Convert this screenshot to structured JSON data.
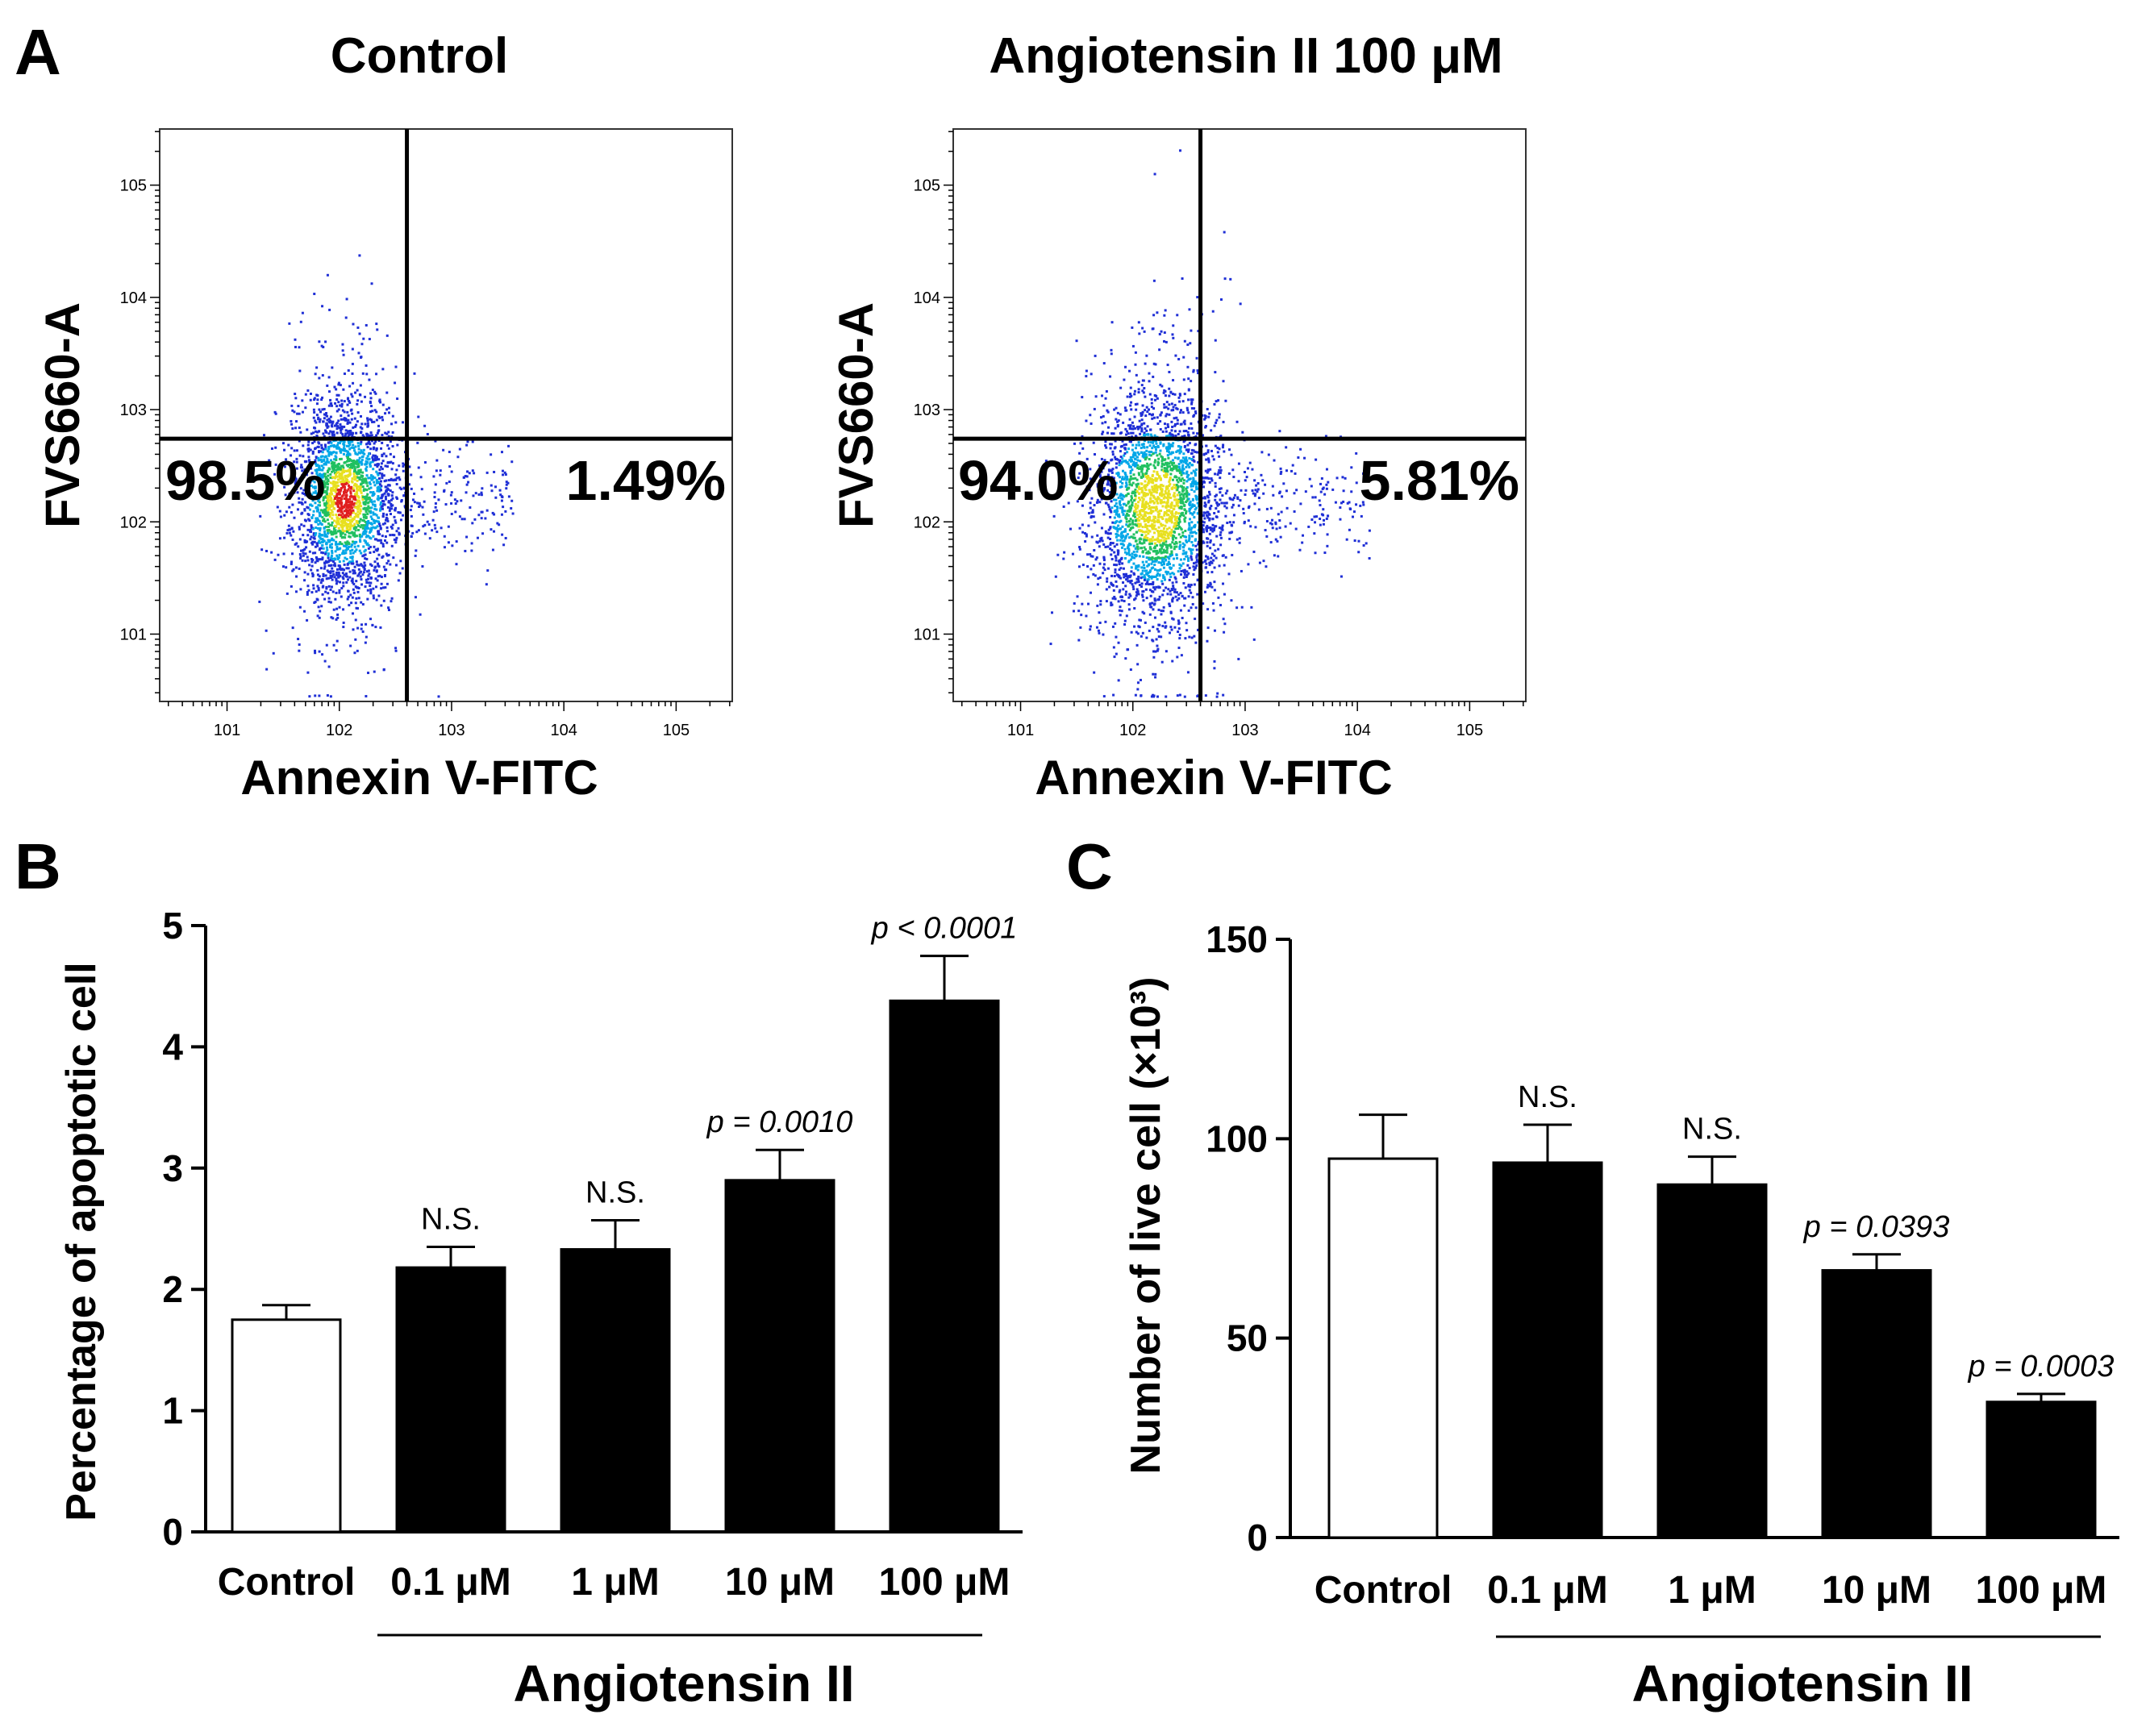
{
  "panel_labels": {
    "a": "A",
    "b": "B",
    "c": "C"
  },
  "chart_data": [
    {
      "type": "scatter",
      "panel": "A",
      "title": "Control",
      "xlabel": "Annexin V-FITC",
      "ylabel": "FVS660-A",
      "scale": "log",
      "x_ticks": [
        "10^1",
        "10^2",
        "10^3",
        "10^4",
        "10^5"
      ],
      "y_ticks": [
        "10^1",
        "10^2",
        "10^3",
        "10^4",
        "10^5"
      ],
      "quadrant_gate": {
        "x": 400,
        "y": 550
      },
      "quadrants": {
        "lower_left": "98.5%",
        "lower_right": "1.49%"
      },
      "population": {
        "center_x": 110,
        "center_y": 160,
        "spread_log_x": 0.24,
        "spread_log_y": 0.42,
        "count": 2600,
        "seed": 7
      },
      "colors": {
        "low": "#1f2fd6",
        "mid1": "#00a7e8",
        "mid2": "#20c060",
        "high": "#e8e020",
        "peak": "#e02020"
      }
    },
    {
      "type": "scatter",
      "panel": "A",
      "title": "Angiotensin II 100 μM",
      "xlabel": "Annexin V-FITC",
      "ylabel": "FVS660-A",
      "scale": "log",
      "x_ticks": [
        "10^1",
        "10^2",
        "10^3",
        "10^4",
        "10^5"
      ],
      "y_ticks": [
        "10^1",
        "10^2",
        "10^3",
        "10^4",
        "10^5"
      ],
      "quadrant_gate": {
        "x": 400,
        "y": 550
      },
      "quadrants": {
        "lower_left": "94.0%",
        "lower_right": "5.81%"
      },
      "population": {
        "center_x": 160,
        "center_y": 140,
        "spread_log_x": 0.3,
        "spread_log_y": 0.5,
        "count": 2900,
        "seed": 19
      },
      "colors": {
        "low": "#1f2fd6",
        "mid1": "#00a7e8",
        "mid2": "#20c060",
        "high": "#e8e020",
        "peak": "#e02020"
      }
    },
    {
      "type": "bar",
      "panel": "B",
      "ylabel": "Percentage of apoptotic cell",
      "categories": [
        "Control",
        "0.1 μM",
        "1 μM",
        "10 μM",
        "100 μM"
      ],
      "values": [
        1.75,
        2.18,
        2.33,
        2.9,
        4.38
      ],
      "errors": [
        0.12,
        0.17,
        0.24,
        0.25,
        0.37
      ],
      "annotations": [
        "",
        "N.S.",
        "N.S.",
        "p = 0.0010",
        "p < 0.0001"
      ],
      "ylim": [
        0,
        5
      ],
      "yticks": [
        0,
        1,
        2,
        3,
        4,
        5
      ],
      "group_label": "Angiotensin II",
      "bar_fill": [
        "#ffffff",
        "#000000",
        "#000000",
        "#000000",
        "#000000"
      ]
    },
    {
      "type": "bar",
      "panel": "C",
      "ylabel": "Number of live cell (×10³)",
      "categories": [
        "Control",
        "0.1 μM",
        "1 μM",
        "10 μM",
        "100 μM"
      ],
      "values": [
        95,
        94,
        88.5,
        67,
        34
      ],
      "errors": [
        11,
        9.5,
        7,
        4,
        2
      ],
      "annotations": [
        "",
        "N.S.",
        "N.S.",
        "p = 0.0393",
        "p = 0.0003"
      ],
      "ylim": [
        0,
        150
      ],
      "yticks": [
        0,
        50,
        100,
        150
      ],
      "group_label": "Angiotensin II",
      "bar_fill": [
        "#ffffff",
        "#000000",
        "#000000",
        "#000000",
        "#000000"
      ]
    }
  ]
}
